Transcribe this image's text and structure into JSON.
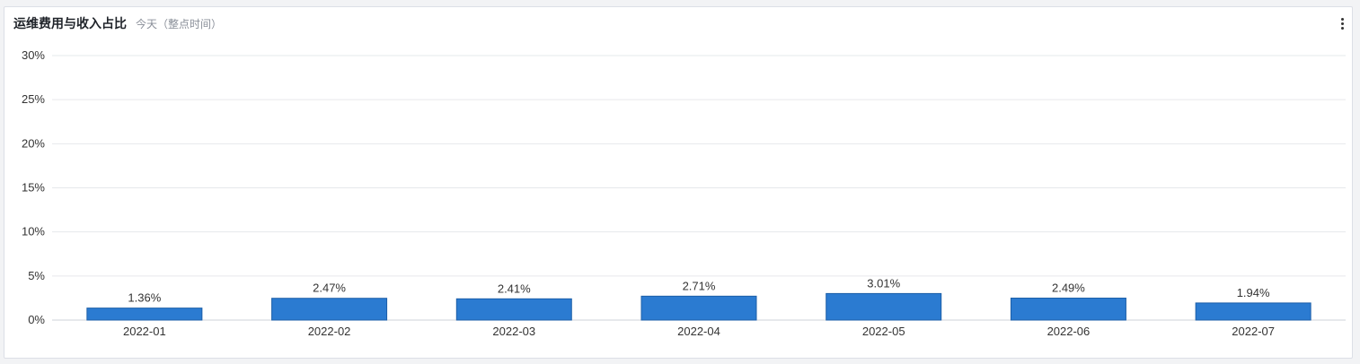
{
  "header": {
    "title": "运维费用与收入占比",
    "subtitle": "今天（整点时间）",
    "more_icon": "more-vertical-icon"
  },
  "colors": {
    "bar": "#2b7bd1",
    "bar_border": "#1c5fa8",
    "grid": "#e6e8eb",
    "axis": "#cfd3d9"
  },
  "chart_data": {
    "type": "bar",
    "title": "",
    "xlabel": "",
    "ylabel": "",
    "categories": [
      "2022-01",
      "2022-02",
      "2022-03",
      "2022-04",
      "2022-05",
      "2022-06",
      "2022-07"
    ],
    "values": [
      1.36,
      2.47,
      2.41,
      2.71,
      3.01,
      2.49,
      1.94
    ],
    "value_labels": [
      "1.36%",
      "2.47%",
      "2.41%",
      "2.71%",
      "3.01%",
      "2.49%",
      "1.94%"
    ],
    "ylim": [
      0,
      30
    ],
    "yticks": [
      0,
      5,
      10,
      15,
      20,
      25,
      30
    ],
    "ytick_labels": [
      "0%",
      "5%",
      "10%",
      "15%",
      "20%",
      "25%",
      "30%"
    ],
    "grid": true,
    "legend": "none"
  }
}
